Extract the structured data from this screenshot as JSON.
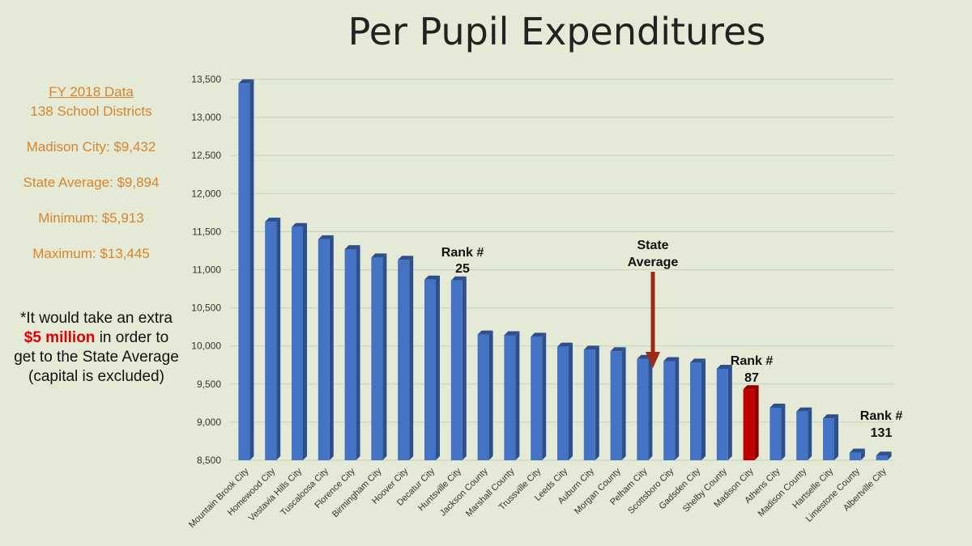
{
  "title": "Per Pupil Expenditures",
  "sidebar": {
    "fy": "FY 2018 Data",
    "districts": "138 School Districts",
    "madison": "Madison City: $9,432",
    "state_avg": "State Average: $9,894",
    "minimum": "Minimum: $5,913",
    "maximum": "Maximum: $13,445"
  },
  "note": {
    "part1": "*It would take an extra",
    "highlight": "$5 million",
    "part2": "in order to get to the State Average (capital is excluded)"
  },
  "annotations": {
    "rank25_line1": "Rank #",
    "rank25_line2": "25",
    "state_line1": "State",
    "state_line2": "Average",
    "rank87_line1": "Rank #",
    "rank87_line2": "87",
    "rank131_line1": "Rank #",
    "rank131_line2": "131"
  },
  "colors": {
    "bar": "#4472c4",
    "bar_side": "#2f4f8a",
    "highlight": "#c00000",
    "highlight_side": "#8a0000",
    "arrow": "#9c2a18",
    "accent_text": "#d9842b"
  },
  "chart_data": {
    "type": "bar",
    "categories": [
      "Mountain Brook City",
      "Homewood City",
      "Vestavia Hills City",
      "Tuscaloosa City",
      "Florence City",
      "Birmingham City",
      "Hoover City",
      "Decatur City",
      "Huntsville City",
      "Jackson County",
      "Marshall County",
      "Trussville City",
      "Leeds City",
      "Auburn City",
      "Morgan County",
      "Pelham City",
      "Scottsboro City",
      "Gadsden City",
      "Shelby County",
      "Madison City",
      "Athens City",
      "Madison County",
      "Hartselle City",
      "Limestone County",
      "Albertville City"
    ],
    "values": [
      13445,
      11630,
      11560,
      11400,
      11270,
      11160,
      11130,
      10870,
      10860,
      10150,
      10140,
      10120,
      9990,
      9950,
      9930,
      9830,
      9800,
      9780,
      9700,
      9432,
      9190,
      9140,
      9050,
      8600,
      8560
    ],
    "highlight_index": 19,
    "yticks": [
      8500,
      9000,
      9500,
      10000,
      10500,
      11000,
      11500,
      12000,
      12500,
      13000,
      13500
    ],
    "ylim": [
      8500,
      13500
    ],
    "grid": true
  }
}
